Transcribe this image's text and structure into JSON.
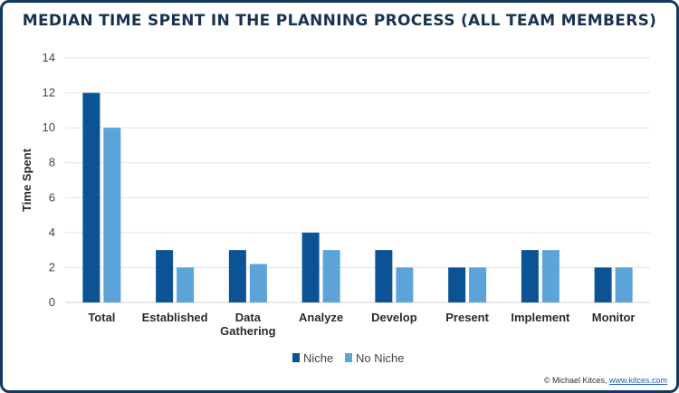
{
  "chart_data": {
    "type": "bar",
    "title": "MEDIAN TIME SPENT IN THE PLANNING PROCESS (ALL TEAM MEMBERS)",
    "ylabel": "Time Spent",
    "xlabel": "",
    "ylim": [
      0,
      14
    ],
    "yticks": [
      0,
      2,
      4,
      6,
      8,
      10,
      12,
      14
    ],
    "grid": true,
    "legend": "bottom-center",
    "categories": [
      [
        "Total"
      ],
      [
        "Established"
      ],
      [
        "Data",
        "Gathering"
      ],
      [
        "Analyze"
      ],
      [
        "Develop"
      ],
      [
        "Present"
      ],
      [
        "Implement"
      ],
      [
        "Monitor"
      ]
    ],
    "series": [
      {
        "name": "Niche",
        "color": "#0b5394",
        "values": [
          12,
          3,
          3,
          4,
          3,
          2,
          3,
          2
        ]
      },
      {
        "name": "No Niche",
        "color": "#5ba3d9",
        "values": [
          10,
          2,
          2.2,
          3,
          2,
          2,
          3,
          2
        ]
      }
    ]
  },
  "footer": {
    "prefix": "© Michael Kitces, ",
    "link": "www.kitces.com"
  },
  "colors": {
    "border": "#123a5c",
    "title": "#1a3250",
    "grid": "#e3e3e3"
  }
}
